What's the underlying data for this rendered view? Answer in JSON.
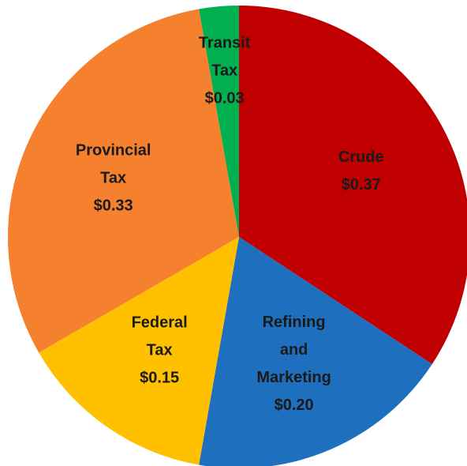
{
  "chart_data": {
    "type": "pie",
    "categories": [
      "Crude",
      "Refining and Marketing",
      "Federal Tax",
      "Provincial Tax",
      "Transit Tax"
    ],
    "values": [
      0.37,
      0.2,
      0.15,
      0.33,
      0.03
    ],
    "value_labels": [
      "$0.37",
      "$0.20",
      "$0.15",
      "$0.33",
      "$0.03"
    ],
    "colors": [
      "#c00000",
      "#1f6fbf",
      "#ffc000",
      "#f5812f",
      "#00b050"
    ]
  }
}
